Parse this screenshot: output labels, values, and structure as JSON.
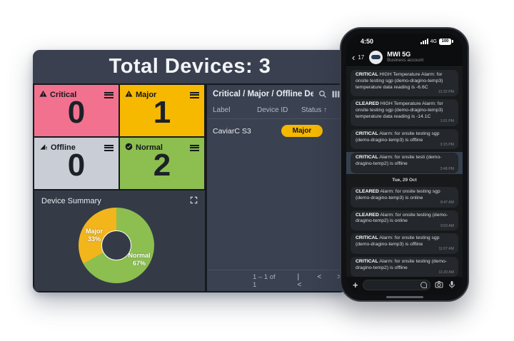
{
  "dashboard": {
    "title": "Total Devices: 3",
    "cards": [
      {
        "label": "Critical",
        "value": "0",
        "color": "#f2718f",
        "icon": "warning-triangle-icon"
      },
      {
        "label": "Major",
        "value": "1",
        "color": "#f7b800",
        "icon": "warning-triangle-icon"
      },
      {
        "label": "Offline",
        "value": "0",
        "color": "#c9ced6",
        "icon": "offline-signal-icon"
      },
      {
        "label": "Normal",
        "value": "2",
        "color": "#8cbf4f",
        "icon": "check-circle-icon"
      }
    ],
    "table": {
      "title": "Critical / Major / Offline Devi...",
      "columns": [
        "Label",
        "Device ID",
        "Status"
      ],
      "sort_column": "Status",
      "sort_arrow": "↑",
      "rows": [
        {
          "label": "CaviarC S3",
          "device_id": "",
          "status": "Major",
          "status_color": "#f5b800"
        }
      ],
      "pagination": {
        "range": "1 – 1 of 1",
        "first": "|<",
        "prev": "<",
        "next": ">"
      }
    },
    "summary": {
      "title": "Device Summary"
    }
  },
  "chart_data": {
    "type": "pie",
    "title": "Device Summary",
    "labels": [
      "Normal",
      "Major"
    ],
    "values": [
      67,
      33
    ],
    "colors": [
      "#8cbf4f",
      "#f2b51c"
    ],
    "donut": true,
    "start_angle": "top, clockwise",
    "legend": "labels rendered on slices as 'Name NN%'"
  },
  "phone": {
    "status_bar": {
      "time": "4:50",
      "network": "4G",
      "battery": "100"
    },
    "chat_header": {
      "back_count": "17",
      "name": "MWI 5G",
      "subtitle": "Business account"
    },
    "messages": [
      {
        "prefix": "CRITICAL",
        "text": " HIGH Temperature Alarm: for onsite testing sgp (demo-dragino-temp3) temperature data reading is -6.6C",
        "time": "12:32 PM"
      },
      {
        "prefix": "CLEARED",
        "text": " HIGH Temperature Alarm: for onsite testing sgp (demo-dragino-temp3) temperature data reading is -14.1C",
        "time": "1:01 PM"
      },
      {
        "prefix": "CRITICAL",
        "text": " Alarm: for onsite testing sgp (demo-dragino-temp3) is offline",
        "time": "3:15 PM"
      },
      {
        "prefix": "CRITICAL",
        "text": " Alarm: for onsite testi (demo-dragino-temp2) is offline",
        "time": "3:48 PM",
        "highlighted": true
      },
      {
        "divider": "Tue, 29 Oct"
      },
      {
        "prefix": "CLEARED",
        "text": " Alarm: for onsite testing sgp (demo-dragino-temp3) is online",
        "time": "8:47 AM"
      },
      {
        "prefix": "CLEARED",
        "text": " Alarm: for onsite testing (demo-dragino-temp2) is online",
        "time": "9:53 AM"
      },
      {
        "prefix": "CRITICAL",
        "text": " Alarm: for onsite testing sgp (demo-dragino-temp3) is offline",
        "time": "11:07 AM"
      },
      {
        "prefix": "CRITICAL",
        "text": " Alarm: for onsite testing (demo-dragino-temp2) is offline",
        "time": "11:20 AM"
      }
    ]
  }
}
